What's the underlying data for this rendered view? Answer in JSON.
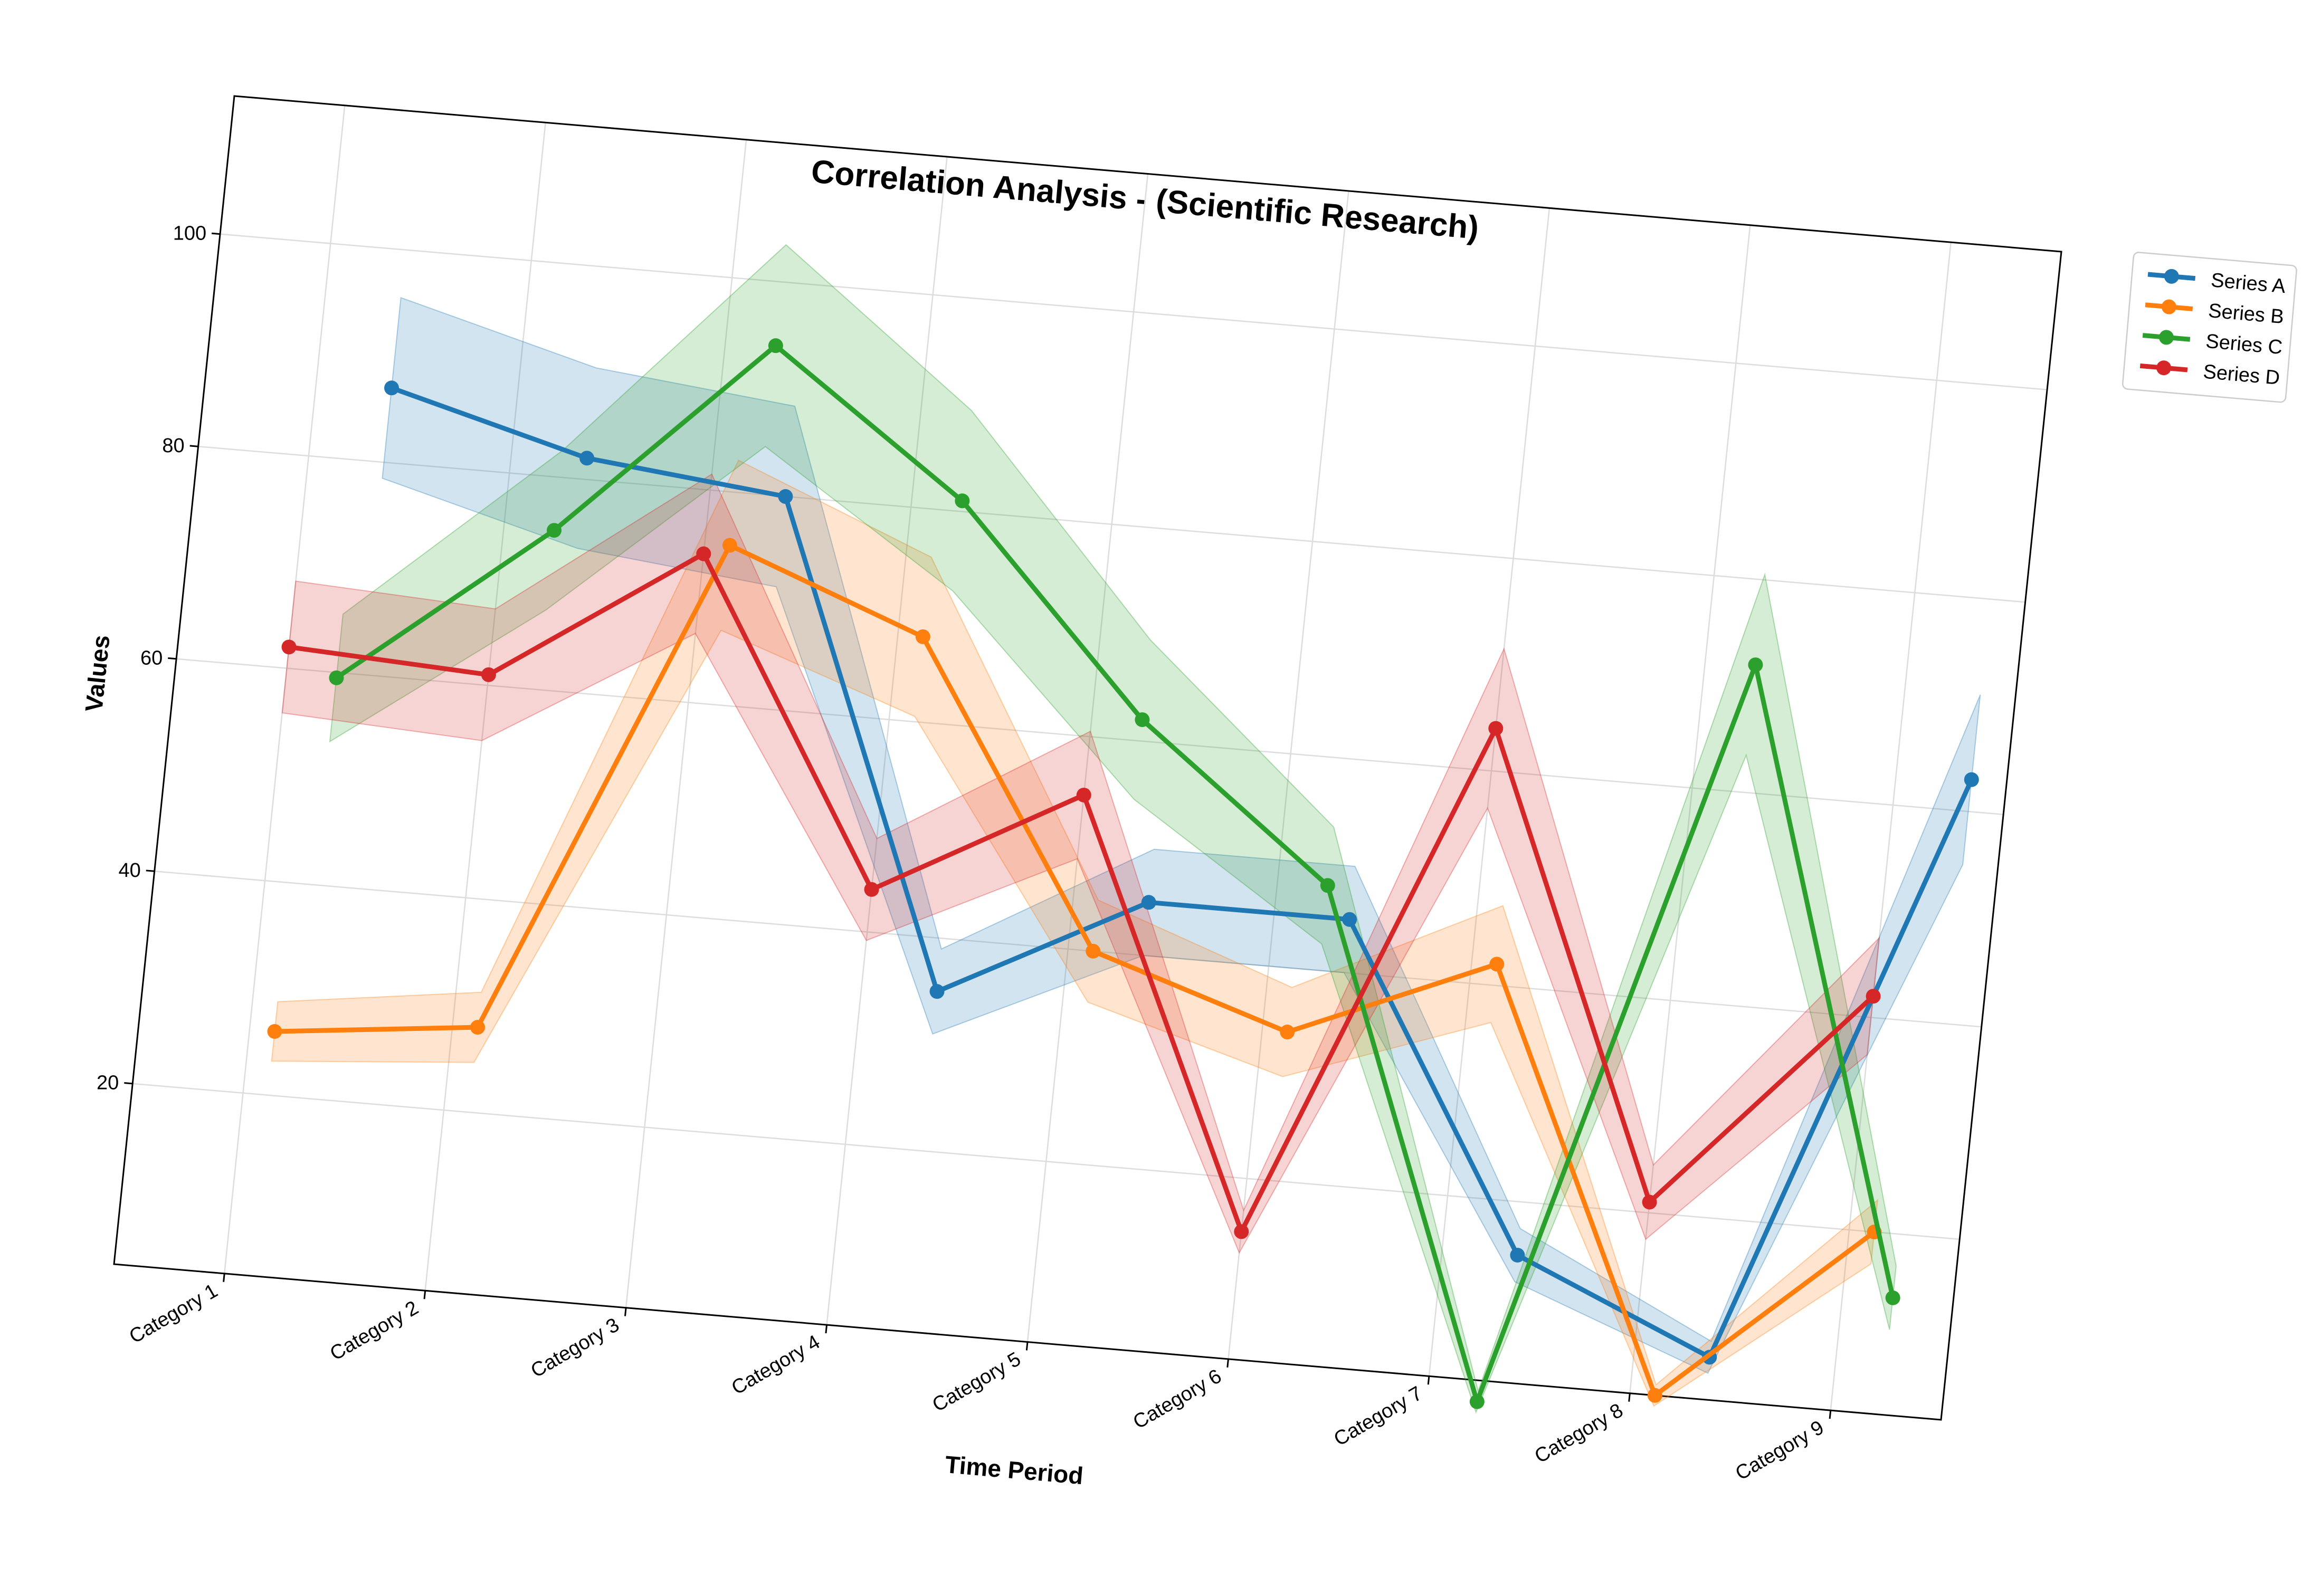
{
  "chart_data": {
    "type": "line",
    "title": "Correlation Analysis - (Scientific Research)",
    "xlabel": "Time Period",
    "ylabel": "Values",
    "categories": [
      "Category 1",
      "Category 2",
      "Category 3",
      "Category 4",
      "Category 5",
      "Category 6",
      "Category 7",
      "Category 8",
      "Category 9"
    ],
    "yticks": [
      20,
      40,
      60,
      80,
      100
    ],
    "ylim": [
      3,
      113
    ],
    "grid": true,
    "legend_position": "outside-top-right",
    "series": [
      {
        "name": "Series A",
        "color": "#1f77b4",
        "offset": 0.375,
        "values": [
          87,
          82,
          80,
          35,
          45,
          45,
          15,
          7,
          63
        ],
        "band": [
          8.5,
          8.5,
          8.5,
          4,
          5,
          5,
          2.5,
          1.5,
          8
        ]
      },
      {
        "name": "Series B",
        "color": "#ff7f0e",
        "offset": 0.125,
        "values": [
          26,
          28,
          75,
          68,
          40,
          34,
          42,
          3,
          20
        ],
        "band": [
          2.8,
          3.3,
          8,
          7.5,
          4.8,
          4.2,
          5.5,
          1,
          3
        ]
      },
      {
        "name": "Series C",
        "color": "#2ca02c",
        "offset": 0.25,
        "values": [
          59.5,
          75,
          94,
          81,
          62,
          48,
          1,
          72,
          14
        ],
        "band": [
          6,
          7.5,
          9.5,
          8.5,
          7.5,
          5.5,
          1,
          8.5,
          3
        ]
      },
      {
        "name": "Series D",
        "color": "#d62728",
        "offset": 0.0,
        "values": [
          62,
          61,
          74,
          44,
          54.5,
          15,
          64,
          21,
          42
        ],
        "band": [
          6.2,
          6.2,
          7.5,
          4.8,
          6,
          2,
          7.5,
          3.5,
          5.5
        ]
      }
    ]
  }
}
